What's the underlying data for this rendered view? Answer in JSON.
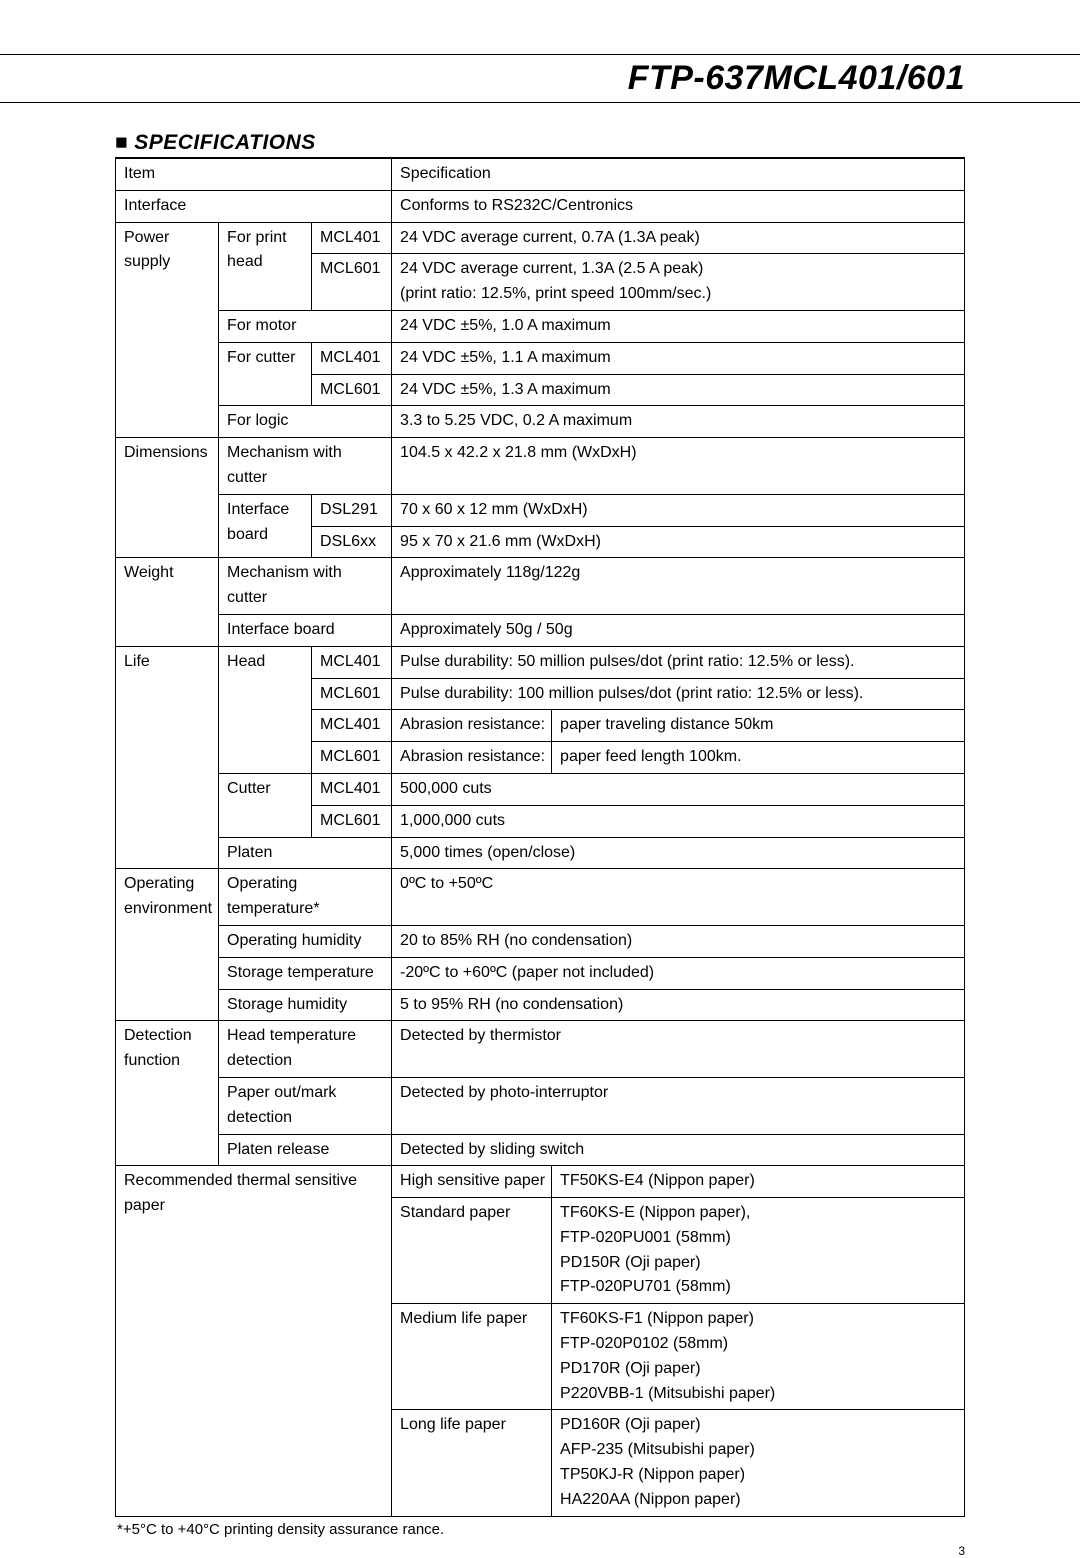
{
  "doc": {
    "title": "FTP-637MCL401/601",
    "section": "SPECIFICATIONS",
    "footnote": "*+5°C to +40°C printing density assurance rance.",
    "pagenum": "3"
  },
  "hdr": {
    "item": "Item",
    "spec": "Specification"
  },
  "rows": {
    "interface": {
      "l": "Interface",
      "v": "Conforms to RS232C/Centronics"
    },
    "power_l1": "Power",
    "power_l2": "supply",
    "ps_head_l1": "For print",
    "ps_head_l2": "head",
    "ps_head_m401": "MCL401",
    "ps_head_m401_v": "24 VDC average current, 0.7A (1.3A peak)",
    "ps_head_m601": "MCL601",
    "ps_head_m601_v": "24 VDC average current, 1.3A (2.5 A peak)\n(print ratio: 12.5%, print speed 100mm/sec.)",
    "ps_motor": "For motor",
    "ps_motor_v": "24 VDC ±5%, 1.0 A maximum",
    "ps_cutter": "For cutter",
    "ps_cut_m401": "MCL401",
    "ps_cut_m401_v": "24 VDC ±5%, 1.1 A maximum",
    "ps_cut_m601": "MCL601",
    "ps_cut_m601_v": "24 VDC ±5%, 1.3 A maximum",
    "ps_logic": "For logic",
    "ps_logic_v": "3.3 to 5.25 VDC, 0.2 A maximum",
    "dim_l": "Dimensions",
    "dim_mech": "Mechanism with cutter",
    "dim_mech_v": "104.5 x 42.2 x 21.8 mm (WxDxH)",
    "dim_if_l1": "Interface",
    "dim_if_l2": "board",
    "dim_if_d291": "DSL291",
    "dim_if_d291_v": "70 x 60 x 12 mm (WxDxH)",
    "dim_if_d6xx": "DSL6xx",
    "dim_if_d6xx_v": "95 x 70 x 21.6 mm (WxDxH)",
    "wt_l": "Weight",
    "wt_mech": "Mechanism with cutter",
    "wt_mech_v": "Approximately 118g/122g",
    "wt_if": "Interface board",
    "wt_if_v": "Approximately 50g / 50g",
    "life_l": "Life",
    "life_head": "Head",
    "life_h401a": "MCL401",
    "life_h401a_v": "Pulse durability: 50 million pulses/dot (print ratio: 12.5% or less).",
    "life_h601a": "MCL601",
    "life_h601a_v": "Pulse durability: 100 million pulses/dot (print ratio: 12.5% or less).",
    "life_h401b": "MCL401",
    "life_h401b_v1": "Abrasion resistance:",
    "life_h401b_v2": "paper traveling distance 50km",
    "life_h601b": "MCL601",
    "life_h601b_v1": "Abrasion resistance:",
    "life_h601b_v2": "paper feed length 100km.",
    "life_cutter": "Cutter",
    "life_c401": "MCL401",
    "life_c401_v": "500,000 cuts",
    "life_c601": "MCL601",
    "life_c601_v": "1,000,000 cuts",
    "life_platen": "Platen",
    "life_platen_v": "5,000 times (open/close)",
    "env_l1": "Operating",
    "env_l2": "environment",
    "env_ot": "Operating temperature*",
    "env_ot_v": "0ºC to +50ºC",
    "env_oh": "Operating humidity",
    "env_oh_v": "20 to 85% RH (no condensation)",
    "env_st": "Storage temperature",
    "env_st_v": "-20ºC to +60ºC (paper not included)",
    "env_sh": "Storage humidity",
    "env_sh_v": "5 to 95% RH (no condensation)",
    "det_l1": "Detection",
    "det_l2": "function",
    "det_ht_l1": "Head temperature",
    "det_ht_l2": "detection",
    "det_ht_v": "Detected by thermistor",
    "det_po_l1": "Paper out/mark",
    "det_po_l2": "detection",
    "det_po_v": "Detected by photo-interruptor",
    "det_pr": "Platen release",
    "det_pr_v": "Detected by sliding switch",
    "rec_l": "Recommended thermal sensitive paper",
    "rec_high": "High sensitive paper",
    "rec_high_v": "TF50KS-E4 (Nippon paper)",
    "rec_std": "Standard paper",
    "rec_std_v": "TF60KS-E (Nippon paper),\nFTP-020PU001 (58mm)\nPD150R (Oji paper)\nFTP-020PU701 (58mm)",
    "rec_med": "Medium life paper",
    "rec_med_v": "TF60KS-F1 (Nippon paper)\nFTP-020P0102 (58mm)\nPD170R (Oji paper)\nP220VBB-1 (Mitsubishi paper)",
    "rec_long": "Long life paper",
    "rec_long_v": "PD160R (Oji paper)\nAFP-235 (Mitsubishi paper)\nTP50KJ-R (Nippon paper)\nHA220AA (Nippon paper)"
  }
}
